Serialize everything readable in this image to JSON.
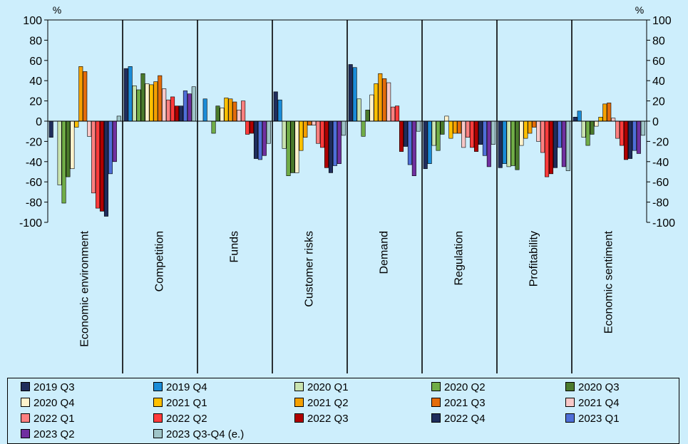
{
  "chart_data": {
    "type": "bar",
    "y_unit_left": "%",
    "y_unit_right": "%",
    "ylim": [
      -100,
      100
    ],
    "yticks": [
      100,
      80,
      60,
      40,
      20,
      0,
      -20,
      -40,
      -60,
      -80,
      -100
    ],
    "grid": false,
    "legend_position": "bottom",
    "categories": [
      "Economic environment",
      "Competition",
      "Funds",
      "Customer risks",
      "Demand",
      "Regulation",
      "Profitability",
      "Economic sentiment"
    ],
    "series": [
      {
        "name": "2019 Q3",
        "color": "#1f2d5c",
        "values": [
          -16,
          52,
          0,
          29,
          56,
          -47,
          -46,
          4
        ]
      },
      {
        "name": "2019 Q4",
        "color": "#1a8cd8",
        "values": [
          0,
          54,
          22,
          21,
          53,
          -42,
          -42,
          10
        ]
      },
      {
        "name": "2020 Q1",
        "color": "#c9e4b0",
        "values": [
          -63,
          35,
          0,
          -27,
          22,
          -24,
          -45,
          -16
        ]
      },
      {
        "name": "2020 Q2",
        "color": "#70ad47",
        "values": [
          -81,
          31,
          -12,
          -54,
          -15,
          -29,
          -44,
          -24
        ]
      },
      {
        "name": "2020 Q3",
        "color": "#4a7a2c",
        "values": [
          -55,
          47,
          15,
          -51,
          11,
          -13,
          -48,
          -13
        ]
      },
      {
        "name": "2020 Q4",
        "color": "#fff2cc",
        "values": [
          -47,
          37,
          13,
          -51,
          26,
          5,
          -24,
          -5
        ]
      },
      {
        "name": "2021 Q1",
        "color": "#ffc000",
        "values": [
          -6,
          36,
          23,
          -29,
          37,
          -17,
          -17,
          4
        ]
      },
      {
        "name": "2021 Q2",
        "color": "#f5a000",
        "values": [
          54,
          39,
          22,
          -16,
          47,
          -12,
          -12,
          17
        ]
      },
      {
        "name": "2021 Q3",
        "color": "#e46c0a",
        "values": [
          49,
          45,
          19,
          -4,
          42,
          -12,
          -6,
          18
        ]
      },
      {
        "name": "2021 Q4",
        "color": "#f8c8c8",
        "values": [
          -15,
          32,
          11,
          -4,
          38,
          -26,
          -20,
          3
        ]
      },
      {
        "name": "2022 Q1",
        "color": "#ff8080",
        "values": [
          -71,
          21,
          20,
          -22,
          14,
          -16,
          -31,
          -17
        ]
      },
      {
        "name": "2022 Q2",
        "color": "#ff3b3b",
        "values": [
          -86,
          24,
          -13,
          -26,
          15,
          -26,
          -55,
          -24
        ]
      },
      {
        "name": "2022 Q3",
        "color": "#b00000",
        "values": [
          -89,
          15,
          -12,
          -46,
          -30,
          -30,
          -52,
          -38
        ]
      },
      {
        "name": "2022 Q4",
        "color": "#1f2d5c",
        "values": [
          -94,
          15,
          -37,
          -51,
          -25,
          -23,
          -46,
          -37
        ]
      },
      {
        "name": "2023 Q1",
        "color": "#4f6fd8",
        "values": [
          -52,
          30,
          -38,
          -44,
          -43,
          -34,
          -26,
          -29
        ]
      },
      {
        "name": "2023 Q2",
        "color": "#7030a0",
        "values": [
          -40,
          27,
          -34,
          -42,
          -54,
          -45,
          -45,
          -32
        ]
      },
      {
        "name": "2023 Q3-Q4 (e.)",
        "color": "#9fc5c8",
        "values": [
          5,
          34,
          -22,
          -14,
          -10,
          -23,
          -49,
          -14
        ]
      }
    ]
  }
}
